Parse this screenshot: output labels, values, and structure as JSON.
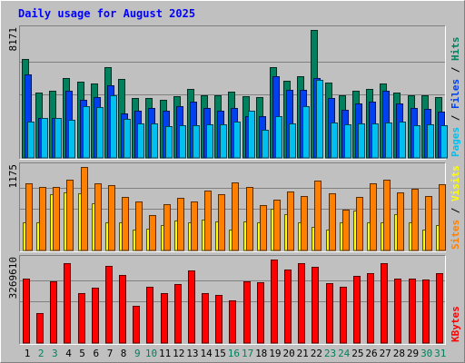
{
  "chart_data": {
    "type": "bar",
    "title": "Daily usage for August 2025",
    "categories": [
      "1",
      "2",
      "3",
      "4",
      "5",
      "6",
      "7",
      "8",
      "9",
      "10",
      "11",
      "12",
      "13",
      "14",
      "15",
      "16",
      "17",
      "18",
      "19",
      "20",
      "21",
      "22",
      "23",
      "24",
      "25",
      "26",
      "27",
      "28",
      "29",
      "30",
      "31"
    ],
    "weekend_days": [
      "2",
      "3",
      "9",
      "10",
      "16",
      "17",
      "23",
      "24",
      "30",
      "31"
    ],
    "panels": [
      {
        "id": "hits",
        "ymax_label": "8171",
        "ymax": 8171,
        "right_labels": [
          {
            "text": "Pages",
            "color": "#00c0f0"
          },
          {
            "text": " / ",
            "color": "#000000"
          },
          {
            "text": "Files",
            "color": "#0040f0"
          },
          {
            "text": " / ",
            "color": "#000000"
          },
          {
            "text": "Hits",
            "color": "#00805c"
          }
        ],
        "series": [
          {
            "name": "Hits",
            "color": "#00805c",
            "values": [
              6320,
              4190,
              4290,
              5100,
              4880,
              4780,
              5780,
              5030,
              3830,
              3830,
              3710,
              3950,
              4390,
              3980,
              3980,
              4220,
              3920,
              3890,
              5780,
              4930,
              5230,
              8171,
              4820,
              3980,
              4290,
              4400,
              4760,
              4170,
              3980,
              3980,
              3870
            ]
          },
          {
            "name": "Files",
            "color": "#0040f0",
            "values": [
              5360,
              2560,
              2560,
              4260,
              3720,
              3860,
              4630,
              2820,
              3020,
              3180,
              3040,
              3310,
              3610,
              3180,
              3040,
              3200,
              2680,
              2680,
              5210,
              4350,
              4370,
              5120,
              3800,
              3060,
              3480,
              3580,
              4300,
              3460,
              3200,
              3140,
              2970
            ]
          },
          {
            "name": "Pages",
            "color": "#00c0f0",
            "values": [
              2290,
              2560,
              2560,
              2430,
              3330,
              3220,
              4010,
              2520,
              2200,
              2220,
              2000,
              2100,
              2090,
              2160,
              2160,
              2310,
              3020,
              1800,
              2670,
              2220,
              3280,
              4990,
              2240,
              2170,
              2200,
              2230,
              2240,
              2330,
              2080,
              2160,
              2110
            ]
          }
        ]
      },
      {
        "id": "visits",
        "ymax_label": "1175",
        "ymax": 1175,
        "right_labels": [
          {
            "text": "Sites",
            "color": "#ff8000"
          },
          {
            "text": " / ",
            "color": "#000000"
          },
          {
            "text": "Visits",
            "color": "#ffff00"
          }
        ],
        "series": [
          {
            "name": "Visits",
            "color": "#ffff00",
            "values": [
              400,
              400,
              790,
              820,
              800,
              660,
              400,
              400,
              290,
              310,
              360,
              420,
              400,
              430,
              410,
              300,
              410,
              400,
              590,
              510,
              400,
              330,
              300,
              400,
              560,
              400,
              400,
              510,
              400,
              300,
              360
            ]
          },
          {
            "name": "Sites",
            "color": "#ff8000",
            "values": [
              950,
              890,
              900,
              1000,
              1175,
              940,
              920,
              750,
              690,
              500,
              650,
              740,
              690,
              840,
              790,
              960,
              900,
              640,
              720,
              830,
              760,
              980,
              800,
              570,
              750,
              940,
              1000,
              820,
              870,
              760,
              930
            ]
          }
        ]
      },
      {
        "id": "kbytes",
        "ymax_label": "3269610",
        "ymax": 3269610,
        "right_labels": [
          {
            "text": "KBytes",
            "color": "#ff0000"
          }
        ],
        "series": [
          {
            "name": "KBytes",
            "color": "#ff0000",
            "values": [
              2510000,
              1180000,
              2430000,
              3110000,
              1960000,
              2170000,
              3030000,
              2650000,
              1460000,
              2190000,
              1960000,
              2300000,
              2840000,
              1960000,
              1900000,
              1660000,
              2430000,
              2390000,
              3269610,
              2890000,
              3140000,
              2990000,
              2360000,
              2190000,
              2640000,
              2720000,
              3120000,
              2540000,
              2540000,
              2480000,
              2750000
            ]
          }
        ]
      }
    ]
  }
}
